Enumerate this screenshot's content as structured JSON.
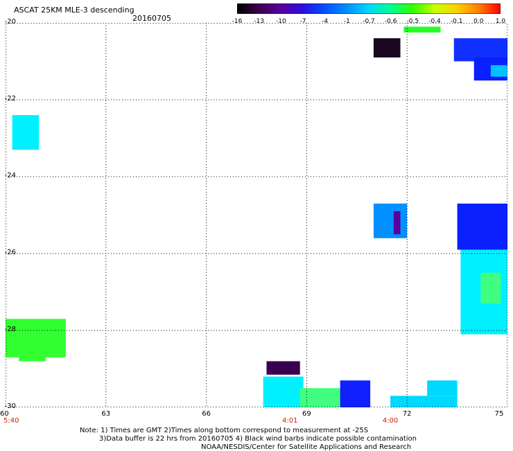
{
  "header": {
    "title": "ASCAT 25KM MLE-3 descending",
    "date": "20160705"
  },
  "colorbar": {
    "labels": [
      "-16",
      "-13",
      "-10",
      "-7",
      "-4",
      "-1",
      "-0.7",
      "-0.6",
      "-0.5",
      "-0.4",
      "-0.1",
      "0.0",
      "1.0"
    ],
    "colors": [
      "#000000",
      "#3a0050",
      "#5a00a0",
      "#2a10e0",
      "#0050ff",
      "#0090ff",
      "#00d8ff",
      "#00ff90",
      "#30ff00",
      "#c8ff00",
      "#ffd000",
      "#ff8000",
      "#ff0000"
    ]
  },
  "axes": {
    "y_labels": [
      "-20",
      "-22",
      "-24",
      "-26",
      "-28",
      "-30"
    ],
    "x_labels": [
      "60",
      "63",
      "66",
      "69",
      "72",
      "75"
    ],
    "time_labels": [
      {
        "lon": 60,
        "text": "5:40"
      },
      {
        "lon": 68.5,
        "text": "4:01"
      },
      {
        "lon": 71.5,
        "text": "4:00"
      }
    ],
    "xlim": [
      60,
      75
    ],
    "ylim": [
      -30,
      -20
    ]
  },
  "notes": {
    "line1": "Note: 1) Times are GMT 2)Times along bottom correspond to measurement at -25S",
    "line2": "3)Data buffer is 22 hrs from 20160705 4) Black wind barbs indicate possible contamination",
    "line3": "NOAA/NESDIS/Center for Satellite Applications and Research"
  },
  "map_data": {
    "cells": [
      {
        "lon": 71.0,
        "lat": -20.4,
        "w": 0.8,
        "h": 0.5,
        "color": "#1a0820"
      },
      {
        "lon": 71.9,
        "lat": -20.1,
        "w": 1.1,
        "h": 0.15,
        "color": "#22ff22"
      },
      {
        "lon": 73.4,
        "lat": -20.4,
        "w": 1.6,
        "h": 0.6,
        "color": "#1030ff"
      },
      {
        "lon": 74.0,
        "lat": -20.9,
        "w": 1.0,
        "h": 0.6,
        "color": "#0a20ff"
      },
      {
        "lon": 74.5,
        "lat": -21.1,
        "w": 0.5,
        "h": 0.3,
        "color": "#00c0ff"
      },
      {
        "lon": 60.2,
        "lat": -22.4,
        "w": 0.8,
        "h": 0.9,
        "color": "#00f0ff"
      },
      {
        "lon": 71.0,
        "lat": -24.7,
        "w": 1.0,
        "h": 0.9,
        "color": "#0090ff"
      },
      {
        "lon": 71.6,
        "lat": -24.9,
        "w": 0.2,
        "h": 0.6,
        "color": "#5a00a0"
      },
      {
        "lon": 73.5,
        "lat": -24.7,
        "w": 1.5,
        "h": 1.2,
        "color": "#0a20ff"
      },
      {
        "lon": 73.6,
        "lat": -25.9,
        "w": 1.4,
        "h": 2.2,
        "color": "#00f0ff"
      },
      {
        "lon": 74.2,
        "lat": -26.5,
        "w": 0.6,
        "h": 0.8,
        "color": "#40ff80"
      },
      {
        "lon": 60.0,
        "lat": -27.7,
        "w": 1.8,
        "h": 1.0,
        "color": "#30ff30"
      },
      {
        "lon": 60.4,
        "lat": -28.4,
        "w": 0.8,
        "h": 0.4,
        "color": "#30ff30"
      },
      {
        "lon": 67.8,
        "lat": -28.8,
        "w": 1.0,
        "h": 0.35,
        "color": "#3a0050"
      },
      {
        "lon": 67.7,
        "lat": -29.2,
        "w": 1.2,
        "h": 0.8,
        "color": "#00f0ff"
      },
      {
        "lon": 68.8,
        "lat": -29.5,
        "w": 1.3,
        "h": 0.5,
        "color": "#40ff80"
      },
      {
        "lon": 70.0,
        "lat": -29.3,
        "w": 0.9,
        "h": 0.8,
        "color": "#1020ff"
      },
      {
        "lon": 71.5,
        "lat": -29.7,
        "w": 2.0,
        "h": 0.3,
        "color": "#00d8ff"
      },
      {
        "lon": 72.6,
        "lat": -29.3,
        "w": 0.9,
        "h": 0.4,
        "color": "#00d8ff"
      }
    ]
  }
}
